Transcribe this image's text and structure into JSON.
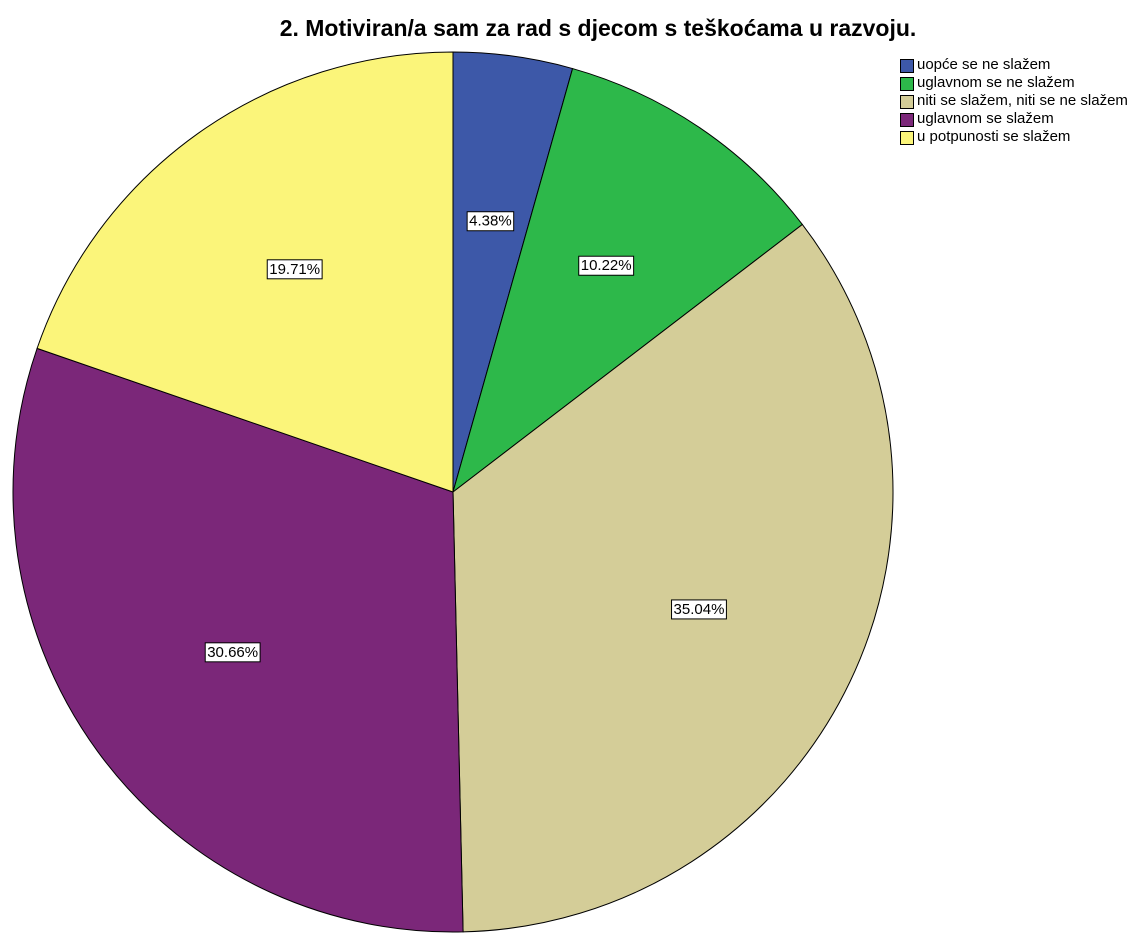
{
  "chart_data": {
    "type": "pie",
    "title": "2. Motiviran/a sam za rad s djecom s teškoćama u razvoju.",
    "categories": [
      "uopće se ne slažem",
      "uglavnom se ne slažem",
      "niti se slažem, niti se ne slažem",
      "uglavnom se slažem",
      "u potpunosti se slažem"
    ],
    "values": [
      4.38,
      10.22,
      35.04,
      30.66,
      19.71
    ],
    "value_labels": [
      "4.38%",
      "10.22%",
      "35.04%",
      "30.66%",
      "19.71%"
    ],
    "colors": [
      "#3d58a8",
      "#2db84a",
      "#d4cd98",
      "#7b2779",
      "#fbf57a"
    ],
    "legend": "top-right"
  }
}
